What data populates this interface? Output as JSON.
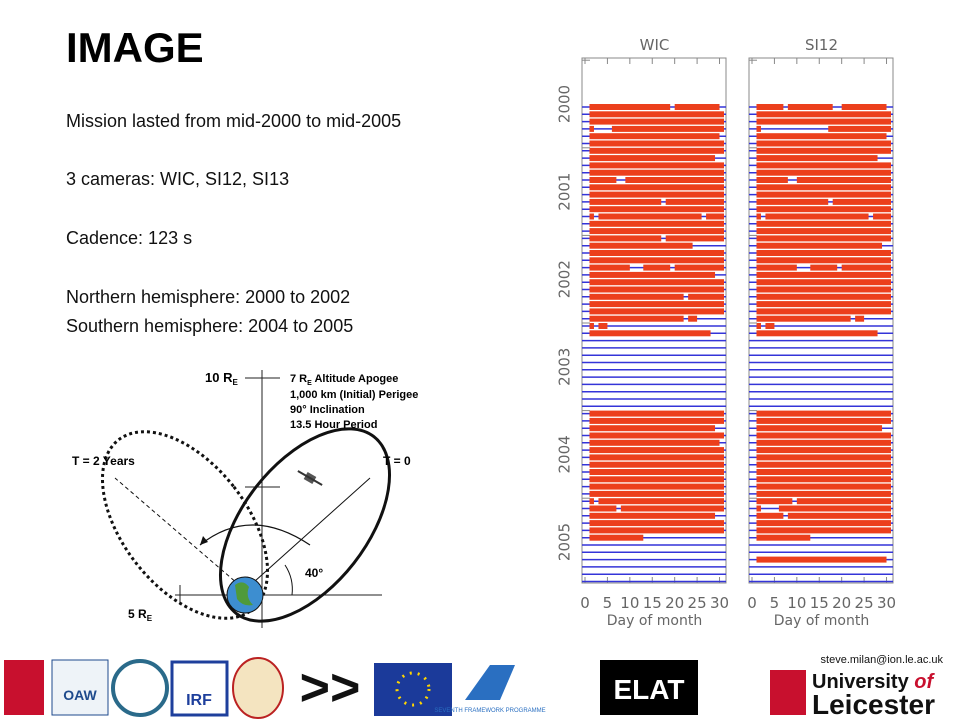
{
  "slide": {
    "title": "IMAGE",
    "bullets": [
      "Mission lasted from mid-2000 to mid-2005",
      "3 cameras: WIC, SI12, SI13",
      "Cadence: 123 s",
      "Northern hemisphere: 2000 to 2002",
      "Southern hemisphere: 2004 to 2005"
    ]
  },
  "orbit": {
    "apogee_axis": {
      "text": "10 R",
      "sub": "E"
    },
    "perigee_axis": {
      "text": "5 R",
      "sub": "E"
    },
    "notes": [
      {
        "text": "7 R",
        "sub": "E",
        "rest": " Altitude Apogee"
      },
      {
        "text": "1,000 km (Initial) Perigee"
      },
      {
        "text": "90° Inclination"
      },
      {
        "text": "13.5 Hour Period"
      }
    ],
    "t_end": "T = 2 Years",
    "t_start": "T = 0",
    "angle": "40°"
  },
  "chart_data": {
    "type": "coverage",
    "xlabel": "Day of month",
    "xlim": [
      0,
      31
    ],
    "xticks": [
      0,
      5,
      10,
      15,
      20,
      25,
      30
    ],
    "years": [
      "2000",
      "2001",
      "2002",
      "2003",
      "2004",
      "2005"
    ],
    "data_color": "#ec3f1c",
    "gap_color": "#3434d8",
    "panels": [
      {
        "name": "WIC",
        "rows": [
          [
            [
              1,
              19
            ],
            [
              20,
              30
            ]
          ],
          [
            [
              1,
              31
            ]
          ],
          [
            [
              1,
              31
            ]
          ],
          [
            [
              1,
              2
            ],
            [
              6,
              31
            ]
          ],
          [
            [
              1,
              30
            ]
          ],
          [
            [
              1,
              31
            ]
          ],
          [
            [
              1,
              31
            ]
          ],
          [
            [
              1,
              29
            ]
          ],
          [
            [
              1,
              31
            ]
          ],
          [
            [
              1,
              31
            ]
          ],
          [
            [
              1,
              7
            ],
            [
              9,
              31
            ]
          ],
          [
            [
              1,
              31
            ]
          ],
          [
            [
              1,
              31
            ]
          ],
          [
            [
              1,
              17
            ],
            [
              18,
              31
            ]
          ],
          [
            [
              1,
              31
            ]
          ],
          [
            [
              1,
              2
            ],
            [
              3,
              26
            ],
            [
              27,
              31
            ]
          ],
          [
            [
              1,
              31
            ]
          ],
          [
            [
              1,
              31
            ]
          ],
          [
            [
              1,
              17
            ],
            [
              18,
              31
            ]
          ],
          [
            [
              1,
              24
            ]
          ],
          [
            [
              1,
              31
            ]
          ],
          [
            [
              1,
              31
            ]
          ],
          [
            [
              1,
              10
            ],
            [
              13,
              19
            ],
            [
              20,
              31
            ]
          ],
          [
            [
              1,
              29
            ]
          ],
          [
            [
              1,
              31
            ]
          ],
          [
            [
              1,
              31
            ]
          ],
          [
            [
              1,
              22
            ],
            [
              23,
              31
            ]
          ],
          [
            [
              1,
              31
            ]
          ],
          [
            [
              1,
              31
            ]
          ],
          [
            [
              1,
              22
            ],
            [
              23,
              25
            ]
          ],
          [
            [
              1,
              2
            ],
            [
              3,
              5
            ]
          ],
          [
            [
              1,
              28
            ]
          ],
          [],
          [],
          [],
          [],
          [],
          [],
          [],
          [],
          [],
          [],
          [
            [
              1,
              31
            ]
          ],
          [
            [
              1,
              31
            ]
          ],
          [
            [
              1,
              29
            ]
          ],
          [
            [
              1,
              31
            ]
          ],
          [
            [
              1,
              30
            ]
          ],
          [
            [
              1,
              31
            ]
          ],
          [
            [
              1,
              31
            ]
          ],
          [
            [
              1,
              31
            ]
          ],
          [
            [
              1,
              31
            ]
          ],
          [
            [
              1,
              31
            ]
          ],
          [
            [
              1,
              31
            ]
          ],
          [
            [
              1,
              31
            ]
          ],
          [
            [
              1,
              2
            ],
            [
              3,
              31
            ]
          ],
          [
            [
              1,
              7
            ],
            [
              8,
              31
            ]
          ],
          [
            [
              1,
              29
            ]
          ],
          [
            [
              1,
              31
            ]
          ],
          [
            [
              1,
              31
            ]
          ],
          [
            [
              1,
              13
            ]
          ],
          [],
          [],
          [],
          [],
          [],
          []
        ]
      },
      {
        "name": "SI12",
        "rows": [
          [
            [
              1,
              7
            ],
            [
              8,
              18
            ],
            [
              20,
              30
            ]
          ],
          [
            [
              1,
              31
            ]
          ],
          [
            [
              1,
              31
            ]
          ],
          [
            [
              1,
              2
            ],
            [
              17,
              31
            ]
          ],
          [
            [
              1,
              30
            ]
          ],
          [
            [
              1,
              31
            ]
          ],
          [
            [
              1,
              31
            ]
          ],
          [
            [
              1,
              28
            ]
          ],
          [
            [
              1,
              31
            ]
          ],
          [
            [
              1,
              31
            ]
          ],
          [
            [
              1,
              8
            ],
            [
              10,
              31
            ]
          ],
          [
            [
              1,
              31
            ]
          ],
          [
            [
              1,
              31
            ]
          ],
          [
            [
              1,
              17
            ],
            [
              18,
              31
            ]
          ],
          [
            [
              1,
              31
            ]
          ],
          [
            [
              1,
              2
            ],
            [
              3,
              26
            ],
            [
              27,
              31
            ]
          ],
          [
            [
              1,
              31
            ]
          ],
          [
            [
              1,
              31
            ]
          ],
          [
            [
              1,
              31
            ]
          ],
          [
            [
              1,
              29
            ]
          ],
          [
            [
              1,
              31
            ]
          ],
          [
            [
              1,
              31
            ]
          ],
          [
            [
              1,
              10
            ],
            [
              13,
              19
            ],
            [
              20,
              31
            ]
          ],
          [
            [
              1,
              31
            ]
          ],
          [
            [
              1,
              31
            ]
          ],
          [
            [
              1,
              31
            ]
          ],
          [
            [
              1,
              31
            ]
          ],
          [
            [
              1,
              31
            ]
          ],
          [
            [
              1,
              31
            ]
          ],
          [
            [
              1,
              22
            ],
            [
              23,
              25
            ]
          ],
          [
            [
              1,
              2
            ],
            [
              3,
              5
            ]
          ],
          [
            [
              1,
              28
            ]
          ],
          [],
          [],
          [],
          [],
          [],
          [],
          [],
          [],
          [],
          [],
          [
            [
              1,
              31
            ]
          ],
          [
            [
              1,
              31
            ]
          ],
          [
            [
              1,
              29
            ]
          ],
          [
            [
              1,
              31
            ]
          ],
          [
            [
              1,
              31
            ]
          ],
          [
            [
              1,
              31
            ]
          ],
          [
            [
              1,
              31
            ]
          ],
          [
            [
              1,
              31
            ]
          ],
          [
            [
              1,
              31
            ]
          ],
          [
            [
              1,
              31
            ]
          ],
          [
            [
              1,
              31
            ]
          ],
          [
            [
              1,
              31
            ]
          ],
          [
            [
              1,
              9
            ],
            [
              10,
              31
            ]
          ],
          [
            [
              1,
              2
            ],
            [
              6,
              31
            ]
          ],
          [
            [
              1,
              7
            ],
            [
              8,
              31
            ]
          ],
          [
            [
              1,
              31
            ]
          ],
          [
            [
              1,
              31
            ]
          ],
          [
            [
              1,
              13
            ]
          ],
          [],
          [],
          [
            [
              1,
              30
            ]
          ],
          [],
          [],
          []
        ]
      }
    ]
  },
  "footer": {
    "email": "steve.milan@ion.le.ac.uk",
    "logos": [
      "OAW",
      "IRF",
      ">>",
      "ELAT"
    ],
    "fp7": "SEVENTH FRAMEWORK PROGRAMME",
    "university": [
      "University",
      "of",
      "Leicester"
    ]
  }
}
